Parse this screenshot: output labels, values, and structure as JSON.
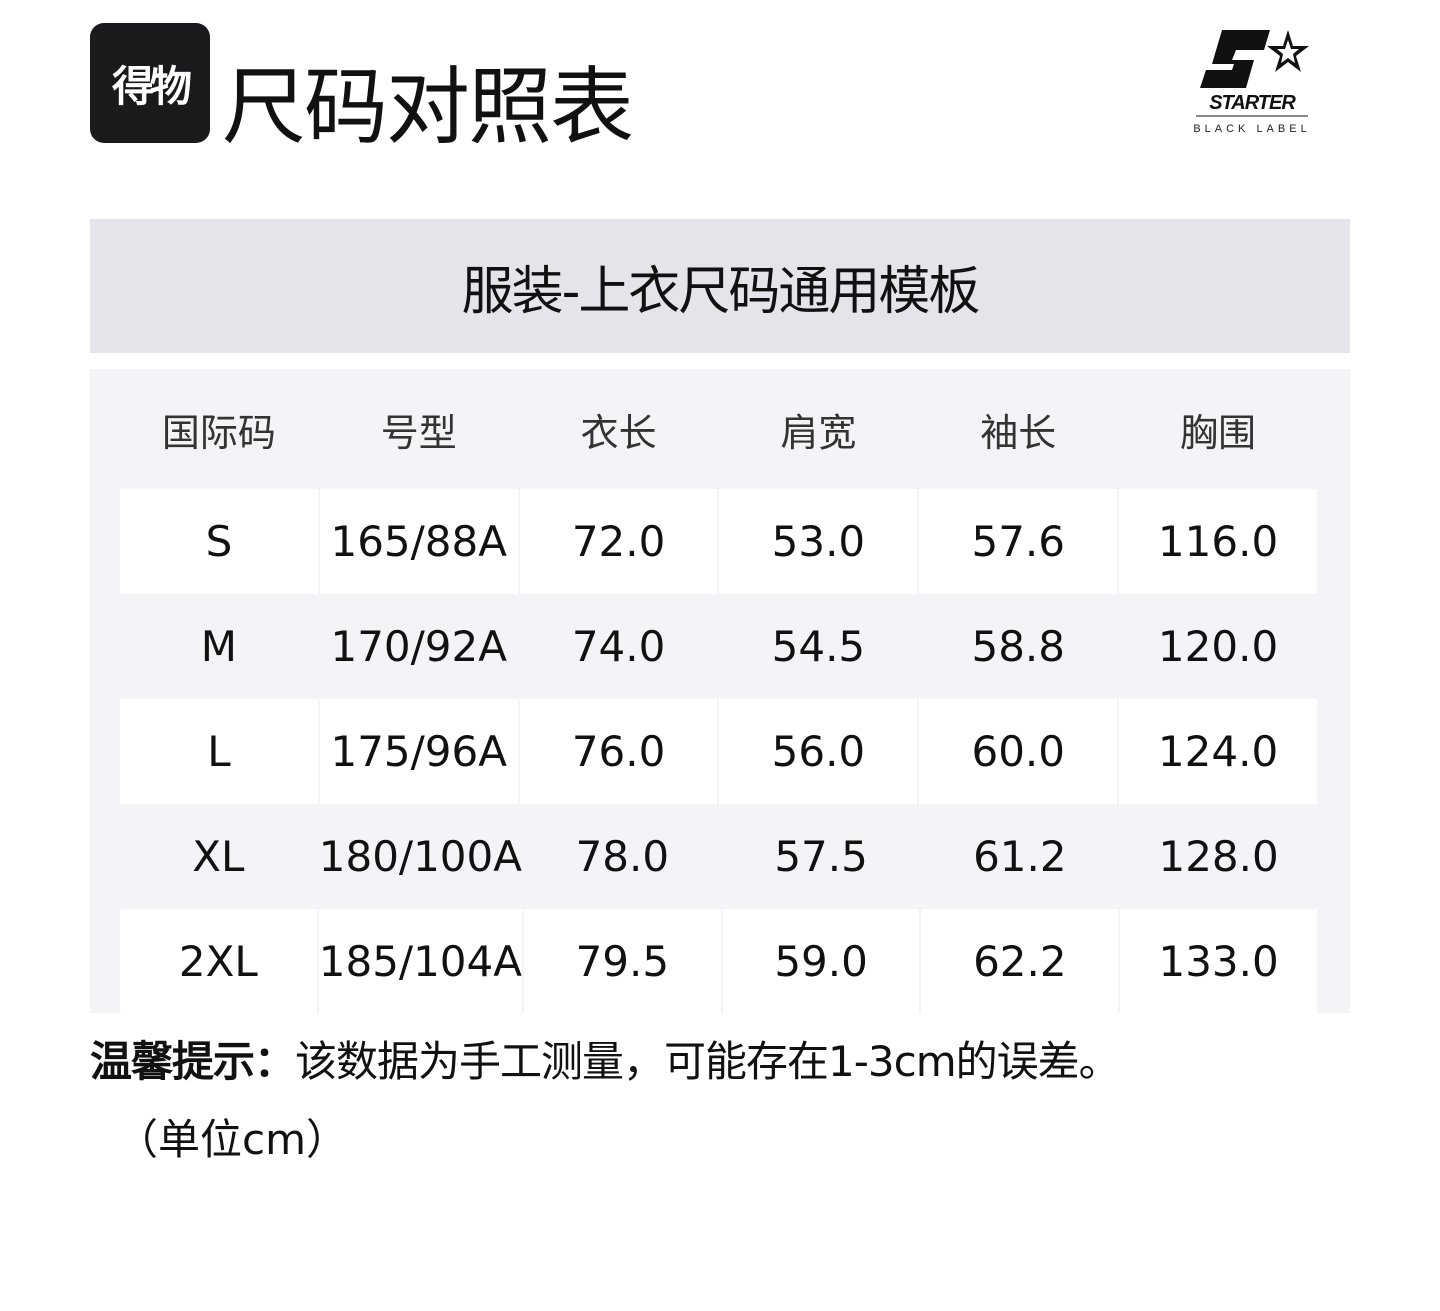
{
  "header": {
    "app_logo_text": "得物",
    "title": "尺码对照表",
    "brand_logo": {
      "name": "STARTER",
      "sub": "BLACK LABEL"
    }
  },
  "banner": {
    "title": "服装-上衣尺码通用模板"
  },
  "table": {
    "columns": [
      "国际码",
      "号型",
      "衣长",
      "肩宽",
      "袖长",
      "胸围"
    ],
    "rows": [
      [
        "S",
        "165/88A",
        "72.0",
        "53.0",
        "57.6",
        "116.0"
      ],
      [
        "M",
        "170/92A",
        "74.0",
        "54.5",
        "58.8",
        "120.0"
      ],
      [
        "L",
        "175/96A",
        "76.0",
        "56.0",
        "60.0",
        "124.0"
      ],
      [
        "XL",
        "180/100A",
        "78.0",
        "57.5",
        "61.2",
        "128.0"
      ],
      [
        "2XL",
        "185/104A",
        "79.5",
        "59.0",
        "62.2",
        "133.0"
      ]
    ]
  },
  "note": {
    "label": "温馨提示：",
    "text": "该数据为手工测量，可能存在1-3cm的误差。",
    "unit": "（单位cm）"
  }
}
